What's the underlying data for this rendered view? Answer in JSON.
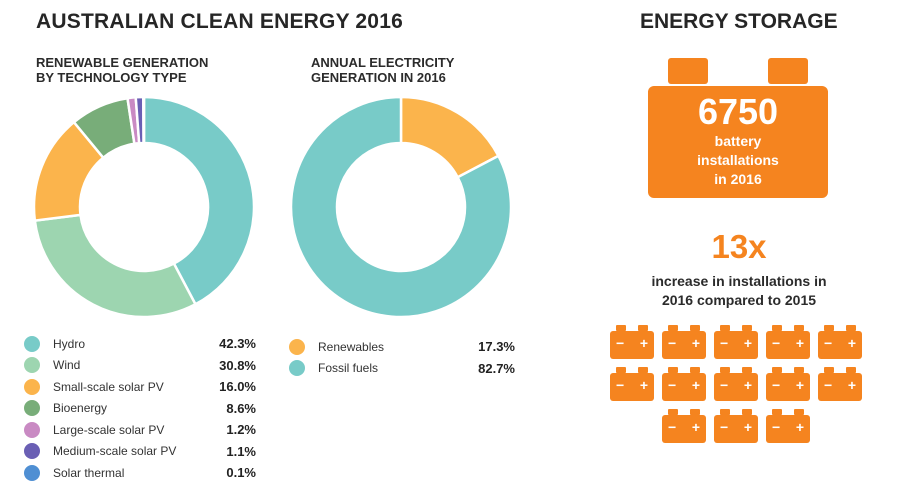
{
  "title": "AUSTRALIAN CLEAN ENERGY 2016",
  "storage": {
    "title": "ENERGY STORAGE",
    "installations": "6750",
    "installations_text_1": "battery",
    "installations_text_2": "installations",
    "installations_text_3": "in 2016",
    "multiplier": "13x",
    "multiplier_text_1": "increase in installations in",
    "multiplier_text_2": "2016 compared to 2015",
    "battery_icon_count": 13,
    "battery_minus": "−",
    "battery_plus": "+",
    "accent_color": "#f5841f"
  },
  "chart_data": [
    {
      "type": "pie",
      "donut": true,
      "title_line1": "RENEWABLE GENERATION",
      "title_line2": "BY TECHNOLOGY TYPE",
      "start": "12 o'clock, clockwise",
      "categories": [
        "Hydro",
        "Wind",
        "Small-scale solar PV",
        "Bioenergy",
        "Large-scale solar PV",
        "Medium-scale solar PV",
        "Solar thermal"
      ],
      "values": [
        42.3,
        30.8,
        16.0,
        8.6,
        1.2,
        1.1,
        0.1
      ],
      "labels": [
        "42.3%",
        "30.8%",
        "16.0%",
        "8.6%",
        "1.2%",
        "1.1%",
        "0.1%"
      ],
      "colors": [
        "#78cbc8",
        "#9dd5b0",
        "#fbb44c",
        "#78ad79",
        "#c98ac3",
        "#6a5fb4",
        "#4f8fd3"
      ],
      "legend": "bottom"
    },
    {
      "type": "pie",
      "donut": true,
      "title_line1": "ANNUAL ELECTRICITY",
      "title_line2": "GENERATION IN 2016",
      "start": "12 o'clock, clockwise",
      "categories": [
        "Renewables",
        "Fossil fuels"
      ],
      "values": [
        17.3,
        82.7
      ],
      "labels": [
        "17.3%",
        "82.7%"
      ],
      "colors": [
        "#fbb44c",
        "#78cbc8"
      ],
      "legend": "bottom"
    }
  ]
}
